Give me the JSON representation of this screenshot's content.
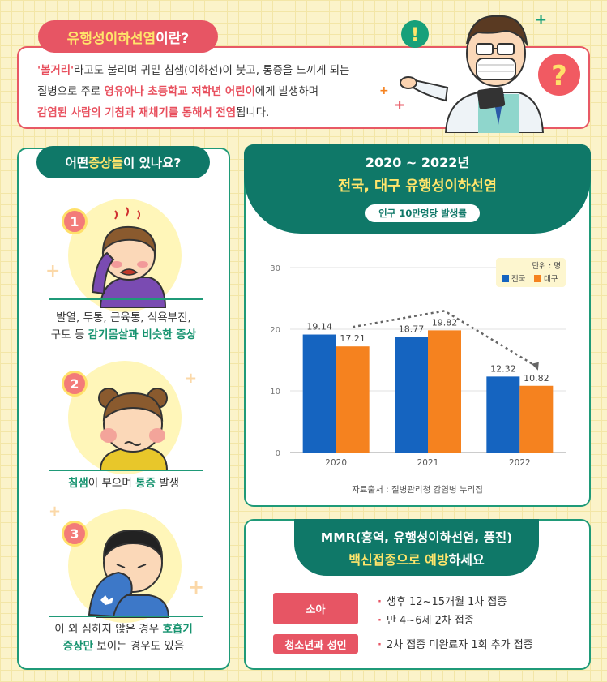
{
  "definition": {
    "title_part1": "유행성이하선염",
    "title_part2": "이란?",
    "line1_red": "'볼거리'",
    "line1_rest": "라고도 불리며 귀밑 침샘(이하선)이 붓고, 통증을 느끼게 되는",
    "line2_a": "질병으로 주로 ",
    "line2_red": "영유아나 초등학교 저학년 어린이",
    "line2_b": "에게 발생하며",
    "line3_red": "감염된 사람의 기침과 재채기를 통해서 전염",
    "line3_b": "됩니다."
  },
  "symptoms": {
    "title_a": "어떤 ",
    "title_b": "증상들",
    "title_c": "이 있나요?",
    "items": [
      {
        "number": "1",
        "text_a": "발열, 두통, 근육통, 식욕부진,",
        "text_b": "구토 등 ",
        "text_green": "감기몸살과 비슷한 증상",
        "text_c": ""
      },
      {
        "number": "2",
        "text_green1": "침샘",
        "text_a": "이 부으며 ",
        "text_green2": "통증",
        "text_b": " 발생"
      },
      {
        "number": "3",
        "text_a": "이 외 심하지 않은 경우 ",
        "text_green1": "호흡기",
        "text_green2": "증상만",
        "text_b": " 보이는 경우도 있음"
      }
    ]
  },
  "chart_header": {
    "title1": "2020 ~ 2022년",
    "title2": "전국, 대구 유행성이하선염",
    "pill": "인구 10만명당 발생률"
  },
  "chart_data": {
    "type": "bar",
    "categories": [
      "2020",
      "2021",
      "2022"
    ],
    "series": [
      {
        "name": "전국",
        "values": [
          19.14,
          18.77,
          12.32
        ],
        "color": "#1564c0"
      },
      {
        "name": "대구",
        "values": [
          17.21,
          19.82,
          10.82
        ],
        "color": "#f5821f"
      }
    ],
    "value_labels": [
      [
        "19.14",
        "18.77",
        "12.32"
      ],
      [
        "17.21",
        "19.82",
        "10.82"
      ]
    ],
    "ylim": [
      0,
      30
    ],
    "yticks": [
      "0",
      "10",
      "20",
      "30"
    ],
    "unit": "단위 : 명",
    "source": "자료출처 : 질병관리청 감염병 누리집",
    "grid": true,
    "legend_position": "top-right"
  },
  "mmr": {
    "title1": "MMR(홍역, 유행성이하선염, 풍진)",
    "title2_yellow": "백신접종으로 예방",
    "title2_rest": "하세요",
    "groups": [
      {
        "label": "소아",
        "items": [
          "생후 12~15개월 1차 접종",
          "만 4~6세 2차 접종"
        ]
      },
      {
        "label": "청소년과 성인",
        "items": [
          "2차 접종 미완료자 1회 추가 접종"
        ]
      }
    ]
  },
  "decor": {
    "exclaim": "!",
    "question": "?",
    "plus": "+"
  }
}
